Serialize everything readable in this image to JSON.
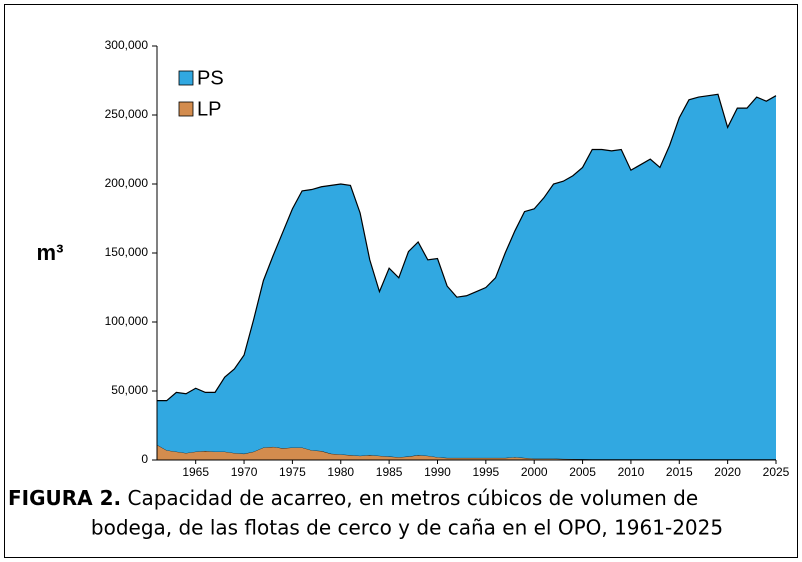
{
  "chart_data": {
    "type": "stacked_area",
    "y_label": "m³",
    "caption_label": "FIGURA 2.",
    "caption_lines": [
      "Capacidad de acarreo, en metros cúbicos de volumen de",
      "bodega, de las flotas de cerco y de caña en el OPO, 1961-2025"
    ],
    "x": [
      1961,
      1962,
      1963,
      1964,
      1965,
      1966,
      1967,
      1968,
      1969,
      1970,
      1971,
      1972,
      1973,
      1974,
      1975,
      1976,
      1977,
      1978,
      1979,
      1980,
      1981,
      1982,
      1983,
      1984,
      1985,
      1986,
      1987,
      1988,
      1989,
      1990,
      1991,
      1992,
      1993,
      1994,
      1995,
      1996,
      1997,
      1998,
      1999,
      2000,
      2001,
      2002,
      2003,
      2004,
      2005,
      2006,
      2007,
      2008,
      2009,
      2010,
      2011,
      2012,
      2013,
      2014,
      2015,
      2016,
      2017,
      2018,
      2019,
      2020,
      2021,
      2022,
      2023,
      2024,
      2025
    ],
    "series": [
      {
        "name": "PS",
        "color": "#31a8e1",
        "values": [
          32000,
          36000,
          43000,
          43000,
          46000,
          42500,
          43000,
          54000,
          61000,
          71500,
          96000,
          121000,
          138500,
          156500,
          173000,
          186000,
          189000,
          191500,
          194500,
          196000,
          195500,
          176000,
          141500,
          119000,
          136500,
          130000,
          148500,
          154500,
          142000,
          144000,
          124500,
          116500,
          117500,
          120500,
          123500,
          130500,
          148500,
          164000,
          178500,
          181000,
          189000,
          199000,
          201200,
          205300,
          211400,
          224500,
          224500,
          223500,
          224500,
          209500,
          213500,
          217500,
          211500,
          227500,
          247500,
          260500,
          262500,
          263500,
          264500,
          240500,
          254500,
          254500,
          262500,
          259500,
          263500
        ]
      },
      {
        "name": "LP",
        "color": "#d38c4e",
        "values": [
          11000,
          7000,
          6000,
          5000,
          6000,
          6500,
          6000,
          6000,
          5000,
          4500,
          6000,
          9000,
          9500,
          8500,
          9000,
          9000,
          7000,
          6500,
          4500,
          4000,
          3500,
          3000,
          3500,
          3000,
          2500,
          2000,
          2500,
          3500,
          3000,
          2000,
          1500,
          1500,
          1500,
          1500,
          1500,
          1500,
          1500,
          2000,
          1500,
          1000,
          1000,
          1000,
          800,
          700,
          600,
          500,
          500,
          500,
          500,
          500,
          500,
          500,
          500,
          500,
          500,
          500,
          500,
          500,
          500,
          500,
          500,
          500,
          500,
          500,
          500
        ]
      }
    ],
    "xlim": [
      1961,
      2025
    ],
    "xticks": [
      1965,
      1970,
      1975,
      1980,
      1985,
      1990,
      1995,
      2000,
      2005,
      2010,
      2015,
      2020,
      2025
    ],
    "ylim": [
      0,
      300000
    ],
    "yticks": [
      0,
      {
        "value": 50000,
        "label": "50,000"
      },
      {
        "value": 100000,
        "label": "100,000"
      },
      {
        "value": 150000,
        "label": "150,000"
      },
      {
        "value": 200000,
        "label": "200,000"
      },
      {
        "value": 250000,
        "label": "250,000"
      },
      {
        "value": 300000,
        "label": "300,000"
      }
    ],
    "legend": "top-left"
  }
}
